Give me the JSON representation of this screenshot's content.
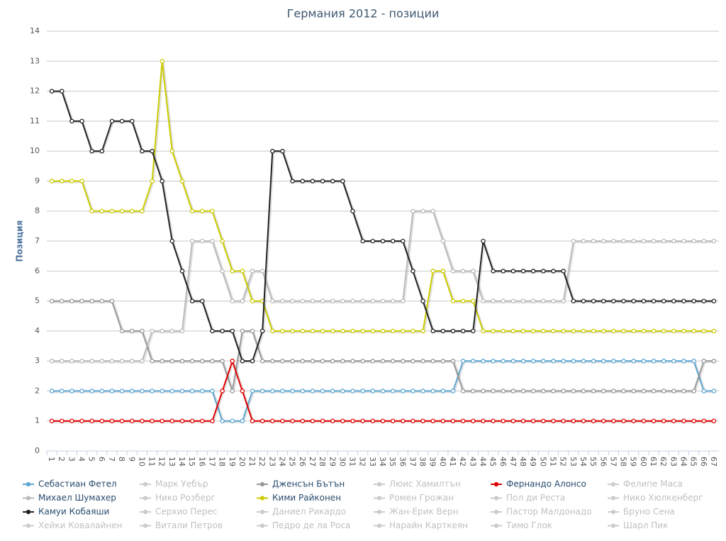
{
  "chart_data": {
    "type": "line",
    "title": "Германия 2012 - позиции",
    "y_label": "Позиция",
    "categories": [
      1,
      2,
      3,
      4,
      5,
      6,
      7,
      8,
      9,
      10,
      11,
      12,
      13,
      14,
      15,
      16,
      17,
      18,
      19,
      20,
      21,
      22,
      23,
      24,
      25,
      26,
      27,
      28,
      29,
      30,
      31,
      32,
      33,
      34,
      35,
      36,
      37,
      38,
      39,
      40,
      41,
      42,
      43,
      44,
      45,
      46,
      47,
      48,
      49,
      50,
      51,
      52,
      53,
      54,
      55,
      56,
      57,
      58,
      59,
      60,
      61,
      62,
      63,
      64,
      65,
      66,
      67
    ],
    "ylim": [
      0,
      14
    ],
    "yticks": [
      0,
      1,
      2,
      3,
      4,
      5,
      6,
      7,
      8,
      9,
      10,
      11,
      12,
      13,
      14
    ],
    "grid": true,
    "legend": "bottom",
    "series": [
      {
        "name": "Себастиан Фетел",
        "color": "#5ea8d3",
        "visible": true,
        "values": [
          2,
          2,
          2,
          2,
          2,
          2,
          2,
          2,
          2,
          2,
          2,
          2,
          2,
          2,
          2,
          2,
          2,
          1,
          1,
          1,
          2,
          2,
          2,
          2,
          2,
          2,
          2,
          2,
          2,
          2,
          2,
          2,
          2,
          2,
          2,
          2,
          2,
          2,
          2,
          2,
          2,
          3,
          3,
          3,
          3,
          3,
          3,
          3,
          3,
          3,
          3,
          3,
          3,
          3,
          3,
          3,
          3,
          3,
          3,
          3,
          3,
          3,
          3,
          3,
          3,
          2,
          2
        ]
      },
      {
        "name": "Марк Уебър",
        "color": "#cccccc",
        "visible": false
      },
      {
        "name": "Дженсън Бътън",
        "color": "#999999",
        "visible": true,
        "values": [
          5,
          5,
          5,
          5,
          5,
          5,
          5,
          4,
          4,
          4,
          3,
          3,
          3,
          3,
          3,
          3,
          3,
          3,
          2,
          4,
          4,
          3,
          3,
          3,
          3,
          3,
          3,
          3,
          3,
          3,
          3,
          3,
          3,
          3,
          3,
          3,
          3,
          3,
          3,
          3,
          3,
          2,
          2,
          2,
          2,
          2,
          2,
          2,
          2,
          2,
          2,
          2,
          2,
          2,
          2,
          2,
          2,
          2,
          2,
          2,
          2,
          2,
          2,
          2,
          2,
          3,
          3
        ]
      },
      {
        "name": "Люис Хамилтън",
        "color": "#cccccc",
        "visible": false
      },
      {
        "name": "Фернандо Алонсо",
        "color": "#e00000",
        "visible": true,
        "values": [
          1,
          1,
          1,
          1,
          1,
          1,
          1,
          1,
          1,
          1,
          1,
          1,
          1,
          1,
          1,
          1,
          1,
          2,
          3,
          2,
          1,
          1,
          1,
          1,
          1,
          1,
          1,
          1,
          1,
          1,
          1,
          1,
          1,
          1,
          1,
          1,
          1,
          1,
          1,
          1,
          1,
          1,
          1,
          1,
          1,
          1,
          1,
          1,
          1,
          1,
          1,
          1,
          1,
          1,
          1,
          1,
          1,
          1,
          1,
          1,
          1,
          1,
          1,
          1,
          1,
          1,
          1
        ]
      },
      {
        "name": "Фелипе Маса",
        "color": "#cccccc",
        "visible": false
      },
      {
        "name": "Михаел Шумахер",
        "color": "#bbbbbb",
        "visible": true,
        "values": [
          3,
          3,
          3,
          3,
          3,
          3,
          3,
          3,
          3,
          3,
          4,
          4,
          4,
          4,
          7,
          7,
          7,
          6,
          5,
          5,
          6,
          6,
          5,
          5,
          5,
          5,
          5,
          5,
          5,
          5,
          5,
          5,
          5,
          5,
          5,
          5,
          8,
          8,
          8,
          7,
          6,
          6,
          6,
          5,
          5,
          5,
          5,
          5,
          5,
          5,
          5,
          5,
          7,
          7,
          7,
          7,
          7,
          7,
          7,
          7,
          7,
          7,
          7,
          7,
          7,
          7,
          7
        ]
      },
      {
        "name": "Нико Розберг",
        "color": "#cccccc",
        "visible": false
      },
      {
        "name": "Кими Райконен",
        "color": "#cccc00",
        "visible": true,
        "values": [
          9,
          9,
          9,
          9,
          8,
          8,
          8,
          8,
          8,
          8,
          9,
          13,
          10,
          9,
          8,
          8,
          8,
          7,
          6,
          6,
          5,
          5,
          4,
          4,
          4,
          4,
          4,
          4,
          4,
          4,
          4,
          4,
          4,
          4,
          4,
          4,
          4,
          4,
          6,
          6,
          5,
          5,
          5,
          4,
          4,
          4,
          4,
          4,
          4,
          4,
          4,
          4,
          4,
          4,
          4,
          4,
          4,
          4,
          4,
          4,
          4,
          4,
          4,
          4,
          4,
          4,
          4
        ]
      },
      {
        "name": "Ромен Грожан",
        "color": "#cccccc",
        "visible": false
      },
      {
        "name": "Пол ди Реста",
        "color": "#cccccc",
        "visible": false
      },
      {
        "name": "Нико Хюлкенберг",
        "color": "#cccccc",
        "visible": false
      },
      {
        "name": "Камуи Кобаяши",
        "color": "#222222",
        "visible": true,
        "values": [
          12,
          12,
          11,
          11,
          10,
          10,
          11,
          11,
          11,
          10,
          10,
          9,
          7,
          6,
          5,
          5,
          4,
          4,
          4,
          3,
          3,
          4,
          10,
          10,
          9,
          9,
          9,
          9,
          9,
          9,
          8,
          7,
          7,
          7,
          7,
          7,
          6,
          5,
          4,
          4,
          4,
          4,
          4,
          7,
          6,
          6,
          6,
          6,
          6,
          6,
          6,
          6,
          5,
          5,
          5,
          5,
          5,
          5,
          5,
          5,
          5,
          5,
          5,
          5,
          5,
          5,
          5
        ]
      },
      {
        "name": "Серхио Перес",
        "color": "#cccccc",
        "visible": false
      },
      {
        "name": "Даниел Рикардо",
        "color": "#cccccc",
        "visible": false
      },
      {
        "name": "Жан-Ерик Верн",
        "color": "#cccccc",
        "visible": false
      },
      {
        "name": "Пастор Малдонадо",
        "color": "#cccccc",
        "visible": false
      },
      {
        "name": "Бруно Сена",
        "color": "#cccccc",
        "visible": false
      },
      {
        "name": "Хейки Ковалайнен",
        "color": "#cccccc",
        "visible": false
      },
      {
        "name": "Витали Петров",
        "color": "#cccccc",
        "visible": false
      },
      {
        "name": "Педро де ла Роса",
        "color": "#cccccc",
        "visible": false
      },
      {
        "name": "Нарайн Карткеян",
        "color": "#cccccc",
        "visible": false
      },
      {
        "name": "Тимо Глок",
        "color": "#cccccc",
        "visible": false
      },
      {
        "name": "Шарл Пик",
        "color": "#cccccc",
        "visible": false
      }
    ]
  }
}
